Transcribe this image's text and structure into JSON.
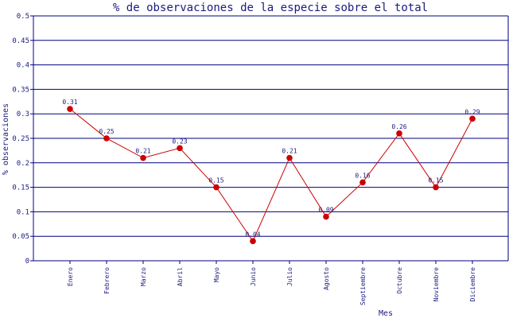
{
  "chart_data": {
    "type": "line",
    "title": "% de observaciones de la especie sobre el total",
    "xlabel": "Mes",
    "ylabel": "% observaciones",
    "categories": [
      "Enero",
      "Febrero",
      "Marzo",
      "Abril",
      "Mayo",
      "Junio",
      "Julio",
      "Agosto",
      "Septiembre",
      "Octubre",
      "Noviembre",
      "Diciembre"
    ],
    "series": [
      {
        "values": [
          0.31,
          0.25,
          0.21,
          0.23,
          0.15,
          0.04,
          0.21,
          0.09,
          0.16,
          0.26,
          0.15,
          0.29
        ]
      }
    ],
    "data_labels": [
      "0.31",
      "0.25",
      "0.21",
      "0.23",
      "0.15",
      "0.04",
      "0.21",
      "0.09",
      "0.16",
      "0.26",
      "0.15",
      "0.29"
    ],
    "ylim": [
      0,
      0.5
    ],
    "yticks": [
      0,
      0.05,
      0.1,
      0.15,
      0.2,
      0.25,
      0.3,
      0.35,
      0.4,
      0.45,
      0.5
    ],
    "ytick_labels": [
      "0",
      "0.05",
      "0.1",
      "0.15",
      "0.2",
      "0.25",
      "0.3",
      "0.35",
      "0.4",
      "0.45",
      "0.5"
    ],
    "grid": "horizontal",
    "legend": "none",
    "colors": {
      "line": "#cc0000",
      "marker": "#cc0000",
      "grid": "#000080",
      "text": "#1a1a80"
    }
  }
}
